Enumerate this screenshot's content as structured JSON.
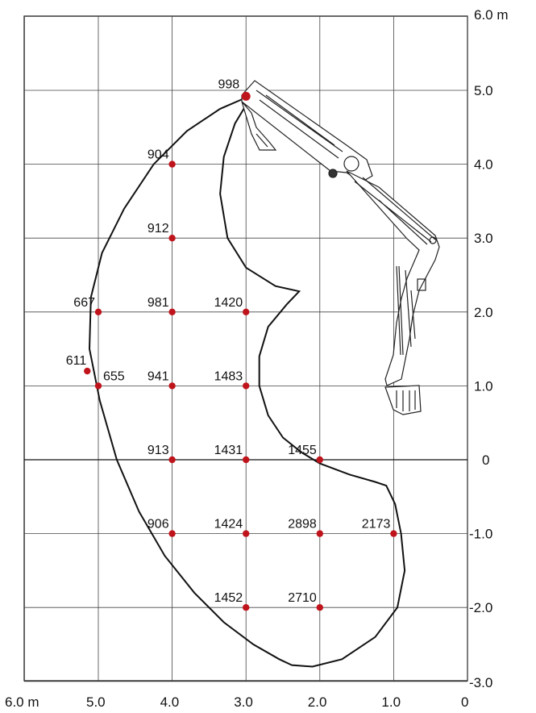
{
  "chart_data": {
    "type": "scatter",
    "x_axis": {
      "range": [
        6.0,
        0
      ],
      "ticks": [
        6.0,
        5.0,
        4.0,
        3.0,
        2.0,
        1.0,
        0
      ],
      "tick_labels": [
        "6.0 m",
        "5.0",
        "4.0",
        "3.0",
        "2.0",
        "1.0",
        "0"
      ]
    },
    "y_axis": {
      "range": [
        -3.0,
        6.0
      ],
      "ticks": [
        6.0,
        5.0,
        4.0,
        3.0,
        2.0,
        1.0,
        0,
        -1.0,
        -2.0,
        -3.0
      ],
      "tick_labels": [
        "6.0 m",
        "5.0",
        "4.0",
        "3.0",
        "2.0",
        "1.0",
        "0",
        "-1.0",
        "-2.0",
        "-3.0"
      ]
    },
    "grid": true,
    "marker_color": "#c0141c",
    "points": [
      {
        "x": 3.0,
        "y": 4.92,
        "label": "998"
      },
      {
        "x": 4.0,
        "y": 4.0,
        "label": "904"
      },
      {
        "x": 4.0,
        "y": 3.0,
        "label": "912"
      },
      {
        "x": 5.0,
        "y": 2.0,
        "label": "667"
      },
      {
        "x": 4.0,
        "y": 2.0,
        "label": "981"
      },
      {
        "x": 3.0,
        "y": 2.0,
        "label": "1420"
      },
      {
        "x": 5.15,
        "y": 1.2,
        "label": "611"
      },
      {
        "x": 5.0,
        "y": 1.0,
        "label": "655"
      },
      {
        "x": 4.0,
        "y": 1.0,
        "label": "941"
      },
      {
        "x": 3.0,
        "y": 1.0,
        "label": "1483"
      },
      {
        "x": 4.0,
        "y": 0,
        "label": "913"
      },
      {
        "x": 3.0,
        "y": 0,
        "label": "1431"
      },
      {
        "x": 2.0,
        "y": 0,
        "label": "1455"
      },
      {
        "x": 4.0,
        "y": -1.0,
        "label": "906"
      },
      {
        "x": 3.0,
        "y": -1.0,
        "label": "1424"
      },
      {
        "x": 2.0,
        "y": -1.0,
        "label": "2898"
      },
      {
        "x": 1.0,
        "y": -1.0,
        "label": "2173"
      },
      {
        "x": 3.0,
        "y": -2.0,
        "label": "1452"
      },
      {
        "x": 2.0,
        "y": -2.0,
        "label": "2710"
      }
    ],
    "envelope": [
      [
        2.38,
        -2.78
      ],
      [
        2.55,
        -2.7
      ],
      [
        2.9,
        -2.5
      ],
      [
        3.3,
        -2.2
      ],
      [
        3.7,
        -1.8
      ],
      [
        4.1,
        -1.3
      ],
      [
        4.45,
        -0.7
      ],
      [
        4.75,
        0.0
      ],
      [
        4.98,
        0.8
      ],
      [
        5.12,
        1.5
      ],
      [
        5.1,
        2.2
      ],
      [
        4.95,
        2.8
      ],
      [
        4.65,
        3.4
      ],
      [
        4.25,
        4.0
      ],
      [
        3.8,
        4.45
      ],
      [
        3.35,
        4.75
      ],
      [
        3.05,
        4.88
      ],
      [
        2.92,
        4.85
      ],
      [
        3.0,
        4.8
      ],
      [
        3.15,
        4.55
      ],
      [
        3.3,
        4.1
      ],
      [
        3.35,
        3.6
      ],
      [
        3.25,
        3.0
      ],
      [
        3.0,
        2.6
      ],
      [
        2.6,
        2.35
      ],
      [
        2.28,
        2.28
      ],
      [
        2.45,
        2.1
      ],
      [
        2.7,
        1.8
      ],
      [
        2.82,
        1.4
      ],
      [
        2.82,
        1.0
      ],
      [
        2.7,
        0.6
      ],
      [
        2.5,
        0.3
      ],
      [
        2.25,
        0.1
      ],
      [
        2.0,
        -0.05
      ],
      [
        1.6,
        -0.2
      ],
      [
        1.25,
        -0.3
      ],
      [
        1.1,
        -0.35
      ],
      [
        0.98,
        -0.6
      ],
      [
        0.9,
        -1.0
      ],
      [
        0.85,
        -1.5
      ],
      [
        0.95,
        -2.0
      ],
      [
        1.25,
        -2.4
      ],
      [
        1.7,
        -2.7
      ],
      [
        2.1,
        -2.8
      ],
      [
        2.38,
        -2.78
      ]
    ]
  }
}
